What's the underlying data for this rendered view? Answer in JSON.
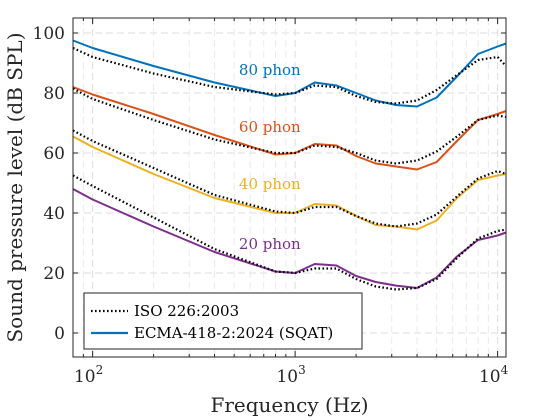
{
  "chart_data": {
    "type": "line",
    "xlabel": "Frequency (Hz)",
    "ylabel": "Sound pressure level (dB SPL)",
    "xscale": "log",
    "xlim": [
      80,
      11000
    ],
    "ylim": [
      -8,
      105
    ],
    "x_tick_base": "10",
    "x_ticks": [
      {
        "value": 100,
        "exp": "2"
      },
      {
        "value": 1000,
        "exp": "3"
      },
      {
        "value": 10000,
        "exp": "4"
      }
    ],
    "y_ticks": [
      0,
      20,
      40,
      60,
      80,
      100
    ],
    "grid": true,
    "legend_position": "bottom-left",
    "legend": [
      {
        "label": "ISO 226:2003",
        "style": "dotted",
        "color": "#000000"
      },
      {
        "label": "ECMA-418-2:2024 (SQAT)",
        "style": "solid",
        "color": "#0072BD"
      }
    ],
    "annotations": [
      {
        "text": "80 phon",
        "x": 750,
        "y": 86,
        "color": "#0072BD"
      },
      {
        "text": "60 phon",
        "x": 750,
        "y": 67,
        "color": "#D95319"
      },
      {
        "text": "40 phon",
        "x": 750,
        "y": 48,
        "color": "#EDB120"
      },
      {
        "text": "20 phon",
        "x": 750,
        "y": 28,
        "color": "#7E2F8E"
      }
    ],
    "series": [
      {
        "label": "80 phon",
        "model": "ISO",
        "color": "#000000",
        "style": "dotted",
        "x": [
          80,
          100,
          200,
          400,
          800,
          1000,
          1250,
          1600,
          2000,
          2500,
          3150,
          4000,
          5000,
          6300,
          8000,
          10000,
          11000
        ],
        "y": [
          95,
          92,
          86.5,
          82,
          79.5,
          80,
          82.5,
          82,
          79,
          77,
          76.5,
          77.5,
          81,
          86,
          91,
          92,
          89
        ]
      },
      {
        "label": "80 phon",
        "model": "ECMA",
        "color": "#0072BD",
        "style": "solid",
        "x": [
          80,
          100,
          200,
          400,
          800,
          1000,
          1250,
          1600,
          2000,
          2500,
          3150,
          4000,
          5000,
          6300,
          8000,
          10000,
          11000
        ],
        "y": [
          97.5,
          95,
          89,
          83.5,
          79,
          80,
          83.5,
          82.5,
          80,
          77.5,
          76,
          75.5,
          78.5,
          85.5,
          93,
          95.5,
          96.5
        ]
      },
      {
        "label": "60 phon",
        "model": "ISO",
        "color": "#000000",
        "style": "dotted",
        "x": [
          80,
          100,
          200,
          400,
          800,
          1000,
          1250,
          1600,
          2000,
          2500,
          3150,
          4000,
          5000,
          6300,
          8000,
          10000,
          11000
        ],
        "y": [
          81.5,
          78,
          71,
          64.5,
          60,
          60,
          62.5,
          62,
          60,
          57.5,
          56.5,
          57.5,
          60.5,
          65.5,
          71,
          72.5,
          72
        ]
      },
      {
        "label": "60 phon",
        "model": "ECMA",
        "color": "#D95319",
        "style": "solid",
        "x": [
          80,
          100,
          200,
          400,
          800,
          1000,
          1250,
          1600,
          2000,
          2500,
          3150,
          4000,
          5000,
          6300,
          8000,
          10000,
          11000
        ],
        "y": [
          82,
          79.5,
          73,
          66,
          59.5,
          60,
          63,
          62.5,
          59,
          56.5,
          55.5,
          54.5,
          57,
          64,
          71,
          73,
          74
        ]
      },
      {
        "label": "40 phon",
        "model": "ISO",
        "color": "#000000",
        "style": "dotted",
        "x": [
          80,
          100,
          200,
          400,
          800,
          1000,
          1250,
          1600,
          2000,
          2500,
          3150,
          4000,
          5000,
          6300,
          8000,
          10000,
          11000
        ],
        "y": [
          67.5,
          64,
          55,
          46,
          40.5,
          40,
          42,
          42,
          39,
          36.5,
          35.5,
          36.5,
          39.5,
          45.5,
          51.5,
          54,
          53
        ]
      },
      {
        "label": "40 phon",
        "model": "ECMA",
        "color": "#EDB120",
        "style": "solid",
        "x": [
          80,
          100,
          200,
          400,
          800,
          1000,
          1250,
          1600,
          2000,
          2500,
          3150,
          4000,
          5000,
          6300,
          8000,
          10000,
          11000
        ],
        "y": [
          65.5,
          62,
          53,
          45,
          40,
          40,
          43,
          42.5,
          39,
          36,
          35.5,
          34.5,
          37.5,
          45,
          51,
          52.5,
          53
        ]
      },
      {
        "label": "20 phon",
        "model": "ISO",
        "color": "#000000",
        "style": "dotted",
        "x": [
          80,
          100,
          200,
          400,
          800,
          1000,
          1250,
          1600,
          2000,
          2500,
          3150,
          4000,
          5000,
          6300,
          8000,
          10000,
          11000
        ],
        "y": [
          52.5,
          49,
          38.5,
          28,
          20.5,
          20,
          21.5,
          21.5,
          18,
          15.5,
          14.5,
          15,
          18,
          25,
          31.5,
          34,
          34.5
        ]
      },
      {
        "label": "20 phon",
        "model": "ECMA",
        "color": "#7E2F8E",
        "style": "solid",
        "x": [
          80,
          100,
          200,
          400,
          800,
          1000,
          1250,
          1600,
          2000,
          2500,
          3150,
          4000,
          5000,
          6300,
          8000,
          10000,
          11000
        ],
        "y": [
          48,
          44.5,
          35.5,
          27,
          20.5,
          20,
          23,
          22.5,
          19,
          17,
          15.8,
          15,
          18.5,
          25.5,
          31,
          32.5,
          33.5
        ]
      }
    ]
  }
}
